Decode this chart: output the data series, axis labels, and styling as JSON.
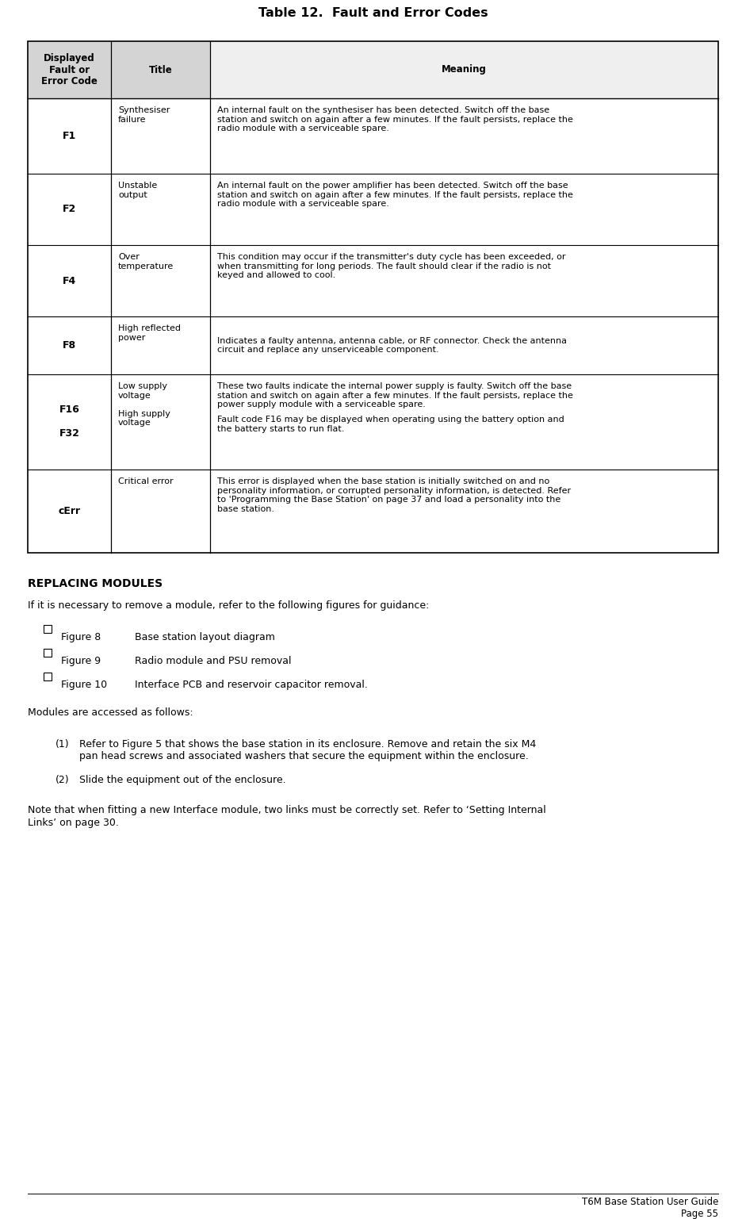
{
  "title": "Table 12.  Fault and Error Codes",
  "col_header": [
    "Displayed\nFault or\nError Code",
    "Title",
    "Meaning"
  ],
  "header_bg": "#d4d4d4",
  "rows": [
    {
      "code": "F1",
      "title": "Synthesiser\nfailure",
      "meaning": "An internal fault on the synthesiser has been detected. Switch off the base\nstation and switch on again after a few minutes. If the fault persists, replace the\nradio module with a serviceable spare.",
      "merged": false
    },
    {
      "code": "F2",
      "title": "Unstable\noutput",
      "meaning": "An internal fault on the power amplifier has been detected. Switch off the base\nstation and switch on again after a few minutes. If the fault persists, replace the\nradio module with a serviceable spare.",
      "merged": false
    },
    {
      "code": "F4",
      "title": "Over\ntemperature",
      "meaning": "This condition may occur if the transmitter's duty cycle has been exceeded, or\nwhen transmitting for long periods. The fault should clear if the radio is not\nkeyed and allowed to cool.",
      "merged": false
    },
    {
      "code": "F8",
      "title": "High reflected\npower",
      "meaning": "Indicates a faulty antenna, antenna cable, or RF connector. Check the antenna\ncircuit and replace any unserviceable component.",
      "merged": false
    },
    {
      "code": "F16\n\nF32",
      "title": "Low supply\nvoltage\n\nHigh supply\nvoltage",
      "meaning_p1": "These two faults indicate the internal power supply is faulty. Switch off the base\nstation and switch on again after a few minutes. If the fault persists, replace the\npower supply module with a serviceable spare.",
      "meaning_p2": "Fault code F16 may be displayed when operating using the battery option and\nthe battery starts to run flat.",
      "merged": true
    },
    {
      "code": "cErr",
      "title": "Critical error",
      "meaning": "This error is displayed when the base station is initially switched on and no\npersonality information, or corrupted personality information, is detected. Refer\nto 'Programming the Base Station' on page 37 and load a personality into the\nbase station.",
      "merged": false
    }
  ],
  "replacing_modules_heading": "REPLACING MODULES",
  "replacing_modules_intro": "If it is necessary to remove a module, refer to the following figures for guidance:",
  "bullets": [
    [
      "Figure 8",
      "Base station layout diagram"
    ],
    [
      "Figure 9",
      "Radio module and PSU removal"
    ],
    [
      "Figure 10",
      "Interface PCB and reservoir capacitor removal."
    ]
  ],
  "modules_para": "Modules are accessed as follows:",
  "numbered_items": [
    "Refer to Figure 5 that shows the base station in its enclosure. Remove and retain the six M4\npan head screws and associated washers that secure the equipment within the enclosure.",
    "Slide the equipment out of the enclosure."
  ],
  "note_text": "Note that when fitting a new Interface module, two links must be correctly set. Refer to ‘Setting Internal\nLinks’ on page 30.",
  "footer_line1": "T6M Base Station User Guide",
  "footer_line2": "Page 55",
  "bg_color": "#ffffff",
  "text_color": "#000000"
}
